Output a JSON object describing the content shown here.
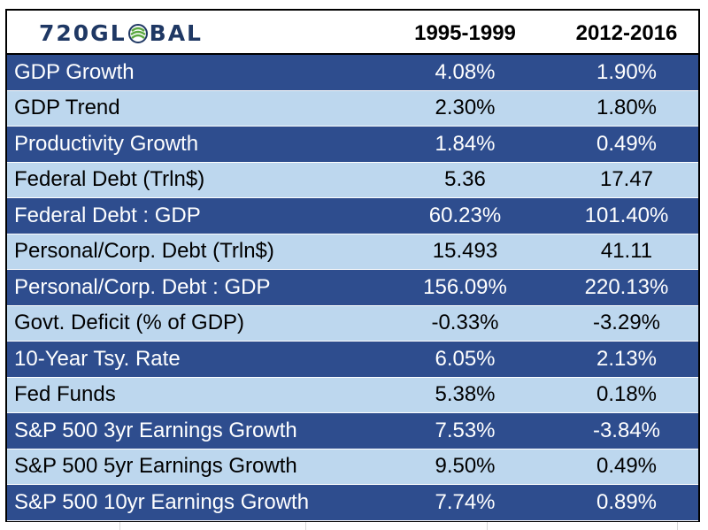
{
  "brand": {
    "prefix": "720GL",
    "suffix": "BAL",
    "logo_color": "#1f3864",
    "accent": "#5ba840"
  },
  "columns": {
    "period1": "1995-1999",
    "period2": "2012-2016"
  },
  "colors": {
    "dark_row": "#2e4d8e",
    "light_row": "#bdd7ee"
  },
  "rows": [
    {
      "label": "GDP Growth",
      "v1": "4.08%",
      "v2": "1.90%",
      "style": "dark"
    },
    {
      "label": "GDP Trend",
      "v1": "2.30%",
      "v2": "1.80%",
      "style": "light"
    },
    {
      "label": "Productivity Growth",
      "v1": "1.84%",
      "v2": "0.49%",
      "style": "dark"
    },
    {
      "label": "Federal Debt (Trln$)",
      "v1": "5.36",
      "v2": "17.47",
      "style": "light"
    },
    {
      "label": "Federal Debt : GDP",
      "v1": "60.23%",
      "v2": "101.40%",
      "style": "dark"
    },
    {
      "label": "Personal/Corp. Debt (Trln$)",
      "v1": "15.493",
      "v2": "41.11",
      "style": "light"
    },
    {
      "label": "Personal/Corp. Debt : GDP",
      "v1": "156.09%",
      "v2": "220.13%",
      "style": "dark"
    },
    {
      "label": "Govt. Deficit (% of GDP)",
      "v1": "-0.33%",
      "v2": "-3.29%",
      "style": "light"
    },
    {
      "label": "10-Year Tsy. Rate",
      "v1": "6.05%",
      "v2": "2.13%",
      "style": "dark"
    },
    {
      "label": "Fed Funds",
      "v1": "5.38%",
      "v2": "0.18%",
      "style": "light"
    },
    {
      "label": "S&P 500 3yr Earnings Growth",
      "v1": "7.53%",
      "v2": "-3.84%",
      "style": "dark"
    },
    {
      "label": "S&P 500 5yr Earnings Growth",
      "v1": "9.50%",
      "v2": "0.49%",
      "style": "light"
    },
    {
      "label": "S&P 500 10yr Earnings Growth",
      "v1": "7.74%",
      "v2": "0.89%",
      "style": "dark"
    }
  ]
}
